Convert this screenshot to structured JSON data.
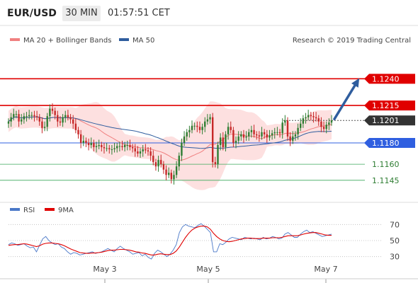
{
  "header": {
    "symbol": "EUR/USD",
    "timeframe": "30 MIN",
    "time": "01:57:51 CET"
  },
  "legend": {
    "main": [
      {
        "name": "MA 20 + Bollinger Bands",
        "color": "#f08080"
      },
      {
        "name": "MA 50",
        "color": "#2f5d9e"
      }
    ],
    "rsi": [
      {
        "name": "RSI",
        "color": "#4a78c8"
      },
      {
        "name": "9MA",
        "color": "#e00000"
      }
    ]
  },
  "source": "Research © 2019 Trading Central",
  "colors": {
    "candle_up": "#2e7d32",
    "candle_down": "#c62828",
    "bollinger_fill": "#fde0e0",
    "ma20": "#f08080",
    "ma50": "#2f5d9e",
    "resistance": "#e00000",
    "pivot": "#2f5fe0",
    "support": "#3aa85a",
    "arrow": "#2f5d9e"
  },
  "chart_data": [
    {
      "type": "candlestick",
      "title": "EUR/USD 30 MIN",
      "ylim": [
        1.1127,
        1.127
      ],
      "x_ticks": [
        "May 3",
        "May 5",
        "May 7"
      ],
      "levels": [
        {
          "value": 1.124,
          "label": "1.1240",
          "kind": "resistance"
        },
        {
          "value": 1.1215,
          "label": "1.1215",
          "kind": "resistance"
        },
        {
          "value": 1.1201,
          "label": "1.1201",
          "kind": "last"
        },
        {
          "value": 1.118,
          "label": "1.1180",
          "kind": "pivot"
        },
        {
          "value": 1.116,
          "label": "1.1160",
          "kind": "support"
        },
        {
          "value": 1.1145,
          "label": "1.1145",
          "kind": "support"
        }
      ],
      "close": [
        1.12,
        1.1204,
        1.1207,
        1.1207,
        1.12,
        1.1202,
        1.1205,
        1.1205,
        1.1206,
        1.1206,
        1.1205,
        1.1204,
        1.12,
        1.1194,
        1.1195,
        1.1205,
        1.1212,
        1.121,
        1.1206,
        1.12,
        1.1199,
        1.1204,
        1.1206,
        1.1204,
        1.1202,
        1.1198,
        1.1192,
        1.1188,
        1.118,
        1.1182,
        1.118,
        1.1178,
        1.118,
        1.1176,
        1.1177,
        1.1178,
        1.1176,
        1.1175,
        1.1175,
        1.1174,
        1.1174,
        1.1175,
        1.1177,
        1.1177,
        1.1176,
        1.1178,
        1.1178,
        1.1176,
        1.1175,
        1.1172,
        1.117,
        1.1172,
        1.1174,
        1.1173,
        1.1172,
        1.1168,
        1.1162,
        1.1158,
        1.1164,
        1.116,
        1.1155,
        1.115,
        1.1152,
        1.1146,
        1.115,
        1.1158,
        1.1168,
        1.118,
        1.1186,
        1.119,
        1.1192,
        1.1196,
        1.1196,
        1.1195,
        1.1192,
        1.1195,
        1.12,
        1.1202,
        1.1204,
        1.1162,
        1.116,
        1.1178,
        1.1185,
        1.1176,
        1.1188,
        1.1195,
        1.1192,
        1.118,
        1.1182,
        1.1186,
        1.1188,
        1.1185,
        1.1186,
        1.119,
        1.1192,
        1.1188,
        1.1187,
        1.1186,
        1.119,
        1.1188,
        1.1185,
        1.1187,
        1.1189,
        1.119,
        1.119,
        1.1189,
        1.1199,
        1.1201,
        1.1186,
        1.1182,
        1.1186,
        1.1188,
        1.1194,
        1.1198,
        1.1203,
        1.1204,
        1.1206,
        1.1205,
        1.1204,
        1.1203,
        1.12,
        1.1195,
        1.1193,
        1.1197,
        1.1199,
        1.1201
      ]
    },
    {
      "type": "line",
      "title": "RSI",
      "ylim": [
        20,
        80
      ],
      "y_ticks": [
        70,
        50,
        30
      ],
      "x_ticks": [
        "May 3",
        "May 5",
        "May 7"
      ],
      "series": [
        {
          "name": "RSI",
          "values": [
            45,
            47,
            46,
            44,
            45,
            46,
            43,
            41,
            42,
            36,
            44,
            52,
            55,
            50,
            47,
            45,
            46,
            42,
            40,
            36,
            33,
            35,
            34,
            32,
            33,
            34,
            35,
            36,
            34,
            35,
            36,
            38,
            40,
            38,
            36,
            40,
            43,
            40,
            38,
            36,
            33,
            34,
            35,
            31,
            33,
            29,
            27,
            34,
            38,
            36,
            33,
            30,
            33,
            38,
            45,
            60,
            67,
            70,
            68,
            67,
            66,
            69,
            71,
            68,
            64,
            60,
            36,
            36,
            46,
            45,
            48,
            52,
            54,
            53,
            52,
            51,
            54,
            53,
            52,
            53,
            52,
            51,
            54,
            52,
            53,
            55,
            54,
            52,
            53,
            58,
            60,
            57,
            54,
            54,
            58,
            61,
            63,
            60,
            61,
            59,
            57,
            55,
            56,
            57,
            58
          ]
        },
        {
          "name": "9MA",
          "values": [
            44,
            44.5,
            45,
            45,
            45.5,
            46,
            45.5,
            44.5,
            43.5,
            42.5,
            43.5,
            45.5,
            46.5,
            47,
            47,
            46.5,
            46,
            45,
            43.5,
            41.5,
            39.5,
            38,
            36.5,
            35,
            34.5,
            34,
            34,
            34.5,
            34.5,
            35,
            35.5,
            36.5,
            37.5,
            38,
            38,
            38.5,
            39,
            39,
            38.5,
            38,
            37,
            36,
            35.5,
            34.5,
            34,
            33,
            32,
            32,
            33,
            33.5,
            33,
            32.5,
            32.5,
            34,
            37,
            42,
            48,
            54,
            59,
            63,
            65.5,
            67,
            68,
            68,
            67,
            64,
            59,
            55,
            52,
            50,
            49,
            48.5,
            49,
            50,
            51,
            52,
            52.5,
            53,
            53,
            52.5,
            52.5,
            52.5,
            53,
            53,
            53,
            53.5,
            53.5,
            53.5,
            54,
            55,
            56,
            56,
            56,
            56,
            57,
            58,
            59,
            59.5,
            60,
            60,
            59,
            58,
            57,
            56.5,
            56.5
          ]
        }
      ]
    }
  ]
}
